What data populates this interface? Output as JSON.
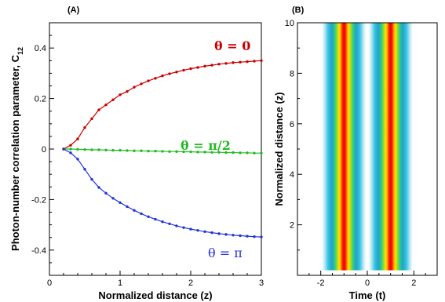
{
  "chart_data": [
    {
      "panel_label": "(A)",
      "type": "line",
      "xlabel": "Normalized distance (z)",
      "ylabel": "Photon-number correlation parameter, C",
      "ylabel_sub": "12",
      "xlim": [
        0,
        3
      ],
      "ylim": [
        -0.5,
        0.5
      ],
      "xticks": [
        "0",
        "1",
        "2",
        "3"
      ],
      "yticks": [
        "-0.4",
        "-0.2",
        "0",
        "0.2",
        "0.4"
      ],
      "x": [
        0.2,
        0.3,
        0.4,
        0.5,
        0.6,
        0.7,
        0.8,
        0.9,
        1.0,
        1.1,
        1.2,
        1.3,
        1.4,
        1.5,
        1.6,
        1.7,
        1.8,
        1.9,
        2.0,
        2.1,
        2.2,
        2.3,
        2.4,
        2.5,
        2.6,
        2.7,
        2.8,
        2.9,
        3.0
      ],
      "series": [
        {
          "label": "θ = 0",
          "color": "#cc0000",
          "values": [
            0.0,
            0.015,
            0.04,
            0.085,
            0.12,
            0.155,
            0.175,
            0.195,
            0.215,
            0.228,
            0.245,
            0.258,
            0.27,
            0.28,
            0.29,
            0.298,
            0.305,
            0.312,
            0.318,
            0.323,
            0.328,
            0.332,
            0.336,
            0.339,
            0.342,
            0.344,
            0.346,
            0.348,
            0.35
          ]
        },
        {
          "label": "θ = π/2",
          "color": "#22bb22",
          "values": [
            0.0,
            0.0,
            -0.001,
            -0.002,
            -0.003,
            -0.003,
            -0.004,
            -0.005,
            -0.005,
            -0.006,
            -0.007,
            -0.007,
            -0.008,
            -0.008,
            -0.009,
            -0.01,
            -0.01,
            -0.011,
            -0.011,
            -0.012,
            -0.012,
            -0.013,
            -0.013,
            -0.014,
            -0.014,
            -0.015,
            -0.015,
            -0.016,
            -0.016
          ]
        },
        {
          "label": "θ = π",
          "color": "#2233dd",
          "values": [
            0.0,
            -0.015,
            -0.04,
            -0.08,
            -0.12,
            -0.152,
            -0.175,
            -0.195,
            -0.212,
            -0.228,
            -0.243,
            -0.256,
            -0.268,
            -0.278,
            -0.288,
            -0.296,
            -0.304,
            -0.311,
            -0.317,
            -0.322,
            -0.327,
            -0.331,
            -0.335,
            -0.338,
            -0.341,
            -0.343,
            -0.345,
            -0.347,
            -0.348
          ]
        }
      ]
    },
    {
      "panel_label": "(B)",
      "type": "heatmap",
      "xlabel": "Time (t)",
      "ylabel": "Normalized distance (z)",
      "xlim": [
        -3,
        3
      ],
      "ylim": [
        0,
        10
      ],
      "xticks": [
        "-2",
        "0",
        "2"
      ],
      "yticks": [
        "2",
        "4",
        "6",
        "8",
        "10"
      ],
      "pulse_centers": [
        -1,
        1
      ],
      "colormap": [
        "#ffffff",
        "#bfe9f5",
        "#35c7e3",
        "#2aa0c8",
        "#1cc7a0",
        "#8fdc2a",
        "#ffe200",
        "#ff9a00",
        "#ff2a00",
        "#e80000"
      ],
      "z_extent": [
        0.2,
        10
      ]
    }
  ]
}
